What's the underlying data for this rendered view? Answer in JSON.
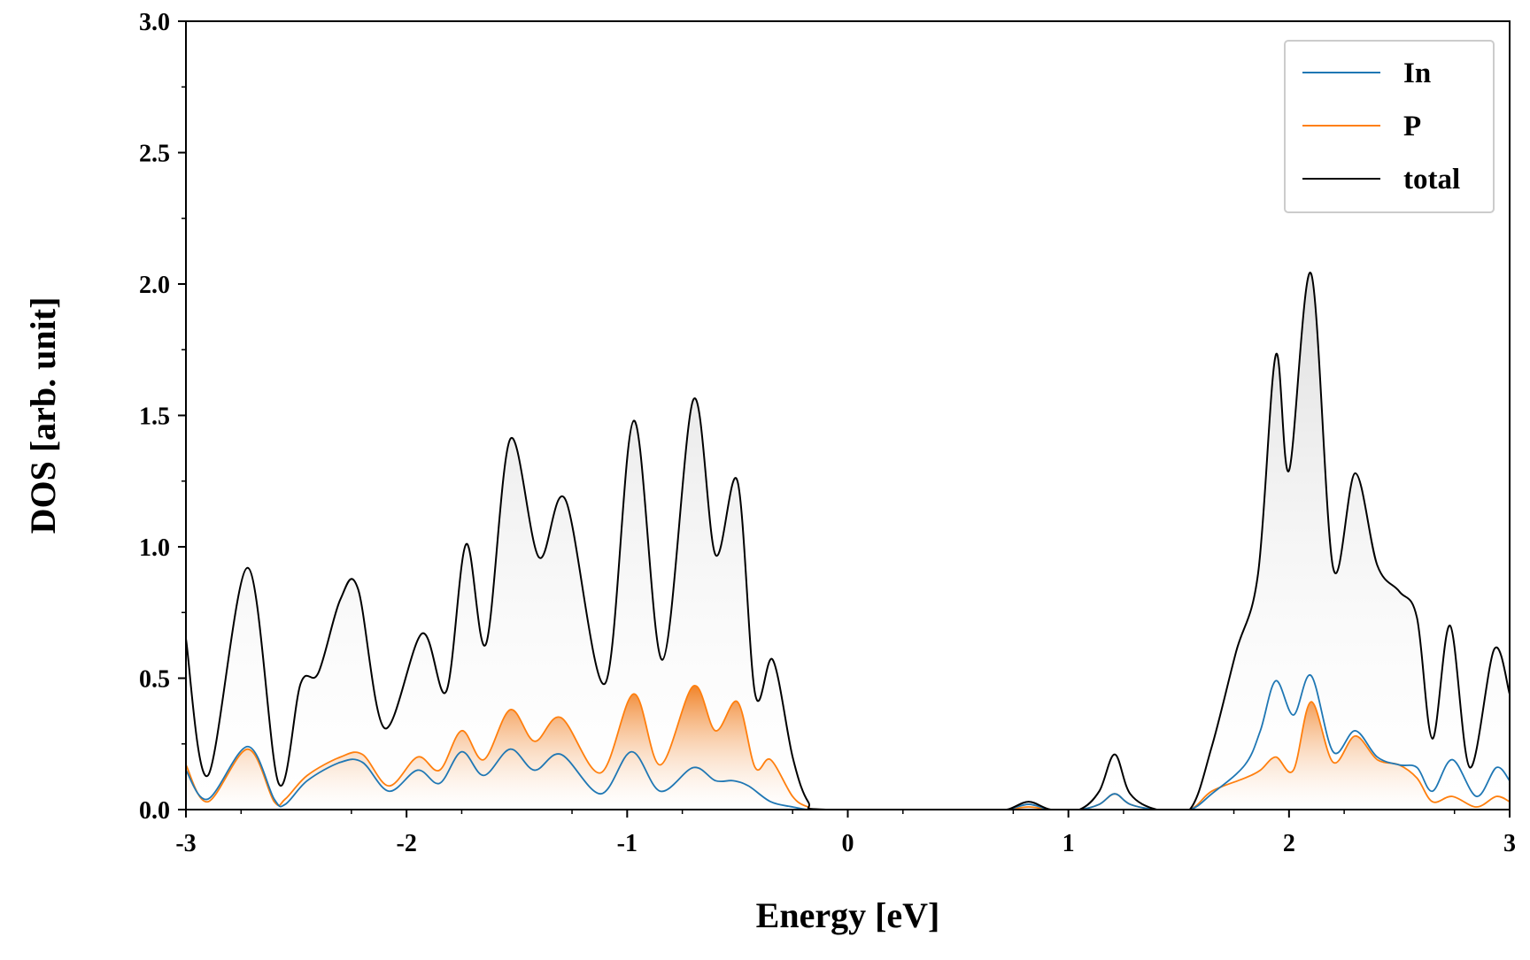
{
  "chart_data": {
    "type": "line",
    "title": "",
    "xlabel": "Energy [eV]",
    "ylabel": "DOS [arb. unit]",
    "xlim": [
      -3,
      3
    ],
    "ylim": [
      0,
      3.0
    ],
    "x_ticks": [
      -3,
      -2,
      -1,
      0,
      1,
      2,
      3
    ],
    "x_tick_labels": [
      "-3",
      "-2",
      "-1",
      "0",
      "1",
      "2",
      "3"
    ],
    "y_ticks": [
      0,
      0.5,
      1.0,
      1.5,
      2.0,
      2.5,
      3.0
    ],
    "y_tick_labels": [
      "0.0",
      "0.5",
      "1.0",
      "1.5",
      "2.0",
      "2.5",
      "3.0"
    ],
    "legend_position": "top-right",
    "grid": false,
    "series": [
      {
        "name": "In",
        "color": "#1f77b4",
        "x": [
          -3.0,
          -2.9,
          -2.72,
          -2.6,
          -2.55,
          -2.45,
          -2.3,
          -2.2,
          -2.08,
          -1.95,
          -1.85,
          -1.75,
          -1.65,
          -1.53,
          -1.42,
          -1.3,
          -1.12,
          -0.98,
          -0.85,
          -0.7,
          -0.6,
          -0.52,
          -0.45,
          -0.35,
          -0.25,
          -0.18,
          -0.1,
          0.6,
          0.72,
          0.82,
          0.92,
          1.05,
          1.14,
          1.21,
          1.28,
          1.4,
          1.55,
          1.65,
          1.8,
          1.87,
          1.94,
          2.02,
          2.1,
          2.2,
          2.3,
          2.4,
          2.5,
          2.58,
          2.65,
          2.74,
          2.85,
          2.94,
          3.0
        ],
        "values": [
          0.15,
          0.04,
          0.24,
          0.04,
          0.02,
          0.11,
          0.18,
          0.18,
          0.07,
          0.15,
          0.1,
          0.22,
          0.13,
          0.23,
          0.15,
          0.21,
          0.06,
          0.22,
          0.07,
          0.16,
          0.11,
          0.11,
          0.09,
          0.03,
          0.01,
          0.0,
          0.0,
          0.0,
          0.0,
          0.02,
          0.0,
          0.0,
          0.02,
          0.06,
          0.02,
          0.0,
          0.0,
          0.06,
          0.17,
          0.3,
          0.49,
          0.36,
          0.51,
          0.22,
          0.3,
          0.2,
          0.17,
          0.16,
          0.07,
          0.19,
          0.05,
          0.16,
          0.11
        ]
      },
      {
        "name": "P",
        "color": "#ff7f0e",
        "x": [
          -3.0,
          -2.9,
          -2.72,
          -2.6,
          -2.55,
          -2.45,
          -2.3,
          -2.2,
          -2.08,
          -1.95,
          -1.85,
          -1.75,
          -1.65,
          -1.53,
          -1.42,
          -1.3,
          -1.12,
          -0.97,
          -0.85,
          -0.7,
          -0.6,
          -0.5,
          -0.42,
          -0.35,
          -0.25,
          -0.18,
          -0.1,
          0.6,
          0.72,
          0.82,
          0.92,
          1.05,
          1.14,
          1.21,
          1.28,
          1.4,
          1.55,
          1.65,
          1.8,
          1.87,
          1.94,
          2.02,
          2.1,
          2.2,
          2.3,
          2.4,
          2.5,
          2.58,
          2.65,
          2.74,
          2.85,
          2.94,
          3.0
        ],
        "values": [
          0.17,
          0.03,
          0.23,
          0.03,
          0.04,
          0.13,
          0.2,
          0.21,
          0.09,
          0.2,
          0.15,
          0.3,
          0.19,
          0.38,
          0.26,
          0.35,
          0.14,
          0.44,
          0.17,
          0.47,
          0.3,
          0.41,
          0.16,
          0.19,
          0.05,
          0.01,
          0.0,
          0.0,
          0.0,
          0.01,
          0.0,
          0.0,
          0.02,
          0.06,
          0.02,
          0.0,
          0.0,
          0.07,
          0.12,
          0.15,
          0.2,
          0.15,
          0.41,
          0.18,
          0.28,
          0.19,
          0.17,
          0.12,
          0.03,
          0.05,
          0.01,
          0.05,
          0.03
        ]
      },
      {
        "name": "total",
        "color": "#000000",
        "x": [
          -3.0,
          -2.9,
          -2.72,
          -2.58,
          -2.48,
          -2.4,
          -2.3,
          -2.22,
          -2.1,
          -1.93,
          -1.82,
          -1.73,
          -1.64,
          -1.53,
          -1.4,
          -1.28,
          -1.1,
          -0.97,
          -0.84,
          -0.7,
          -0.6,
          -0.5,
          -0.42,
          -0.34,
          -0.25,
          -0.18,
          -0.1,
          0.6,
          0.72,
          0.82,
          0.92,
          1.05,
          1.14,
          1.21,
          1.28,
          1.4,
          1.55,
          1.65,
          1.76,
          1.86,
          1.94,
          2.0,
          2.1,
          2.2,
          2.3,
          2.4,
          2.5,
          2.58,
          2.65,
          2.73,
          2.82,
          2.93,
          3.0
        ],
        "values": [
          0.65,
          0.13,
          0.92,
          0.1,
          0.48,
          0.52,
          0.8,
          0.84,
          0.31,
          0.67,
          0.45,
          1.01,
          0.63,
          1.41,
          0.96,
          1.18,
          0.48,
          1.48,
          0.57,
          1.56,
          0.97,
          1.25,
          0.44,
          0.57,
          0.2,
          0.03,
          0.0,
          0.0,
          0.0,
          0.03,
          0.0,
          0.0,
          0.07,
          0.21,
          0.06,
          0.0,
          0.0,
          0.24,
          0.6,
          0.9,
          1.73,
          1.29,
          2.04,
          0.92,
          1.28,
          0.93,
          0.83,
          0.73,
          0.27,
          0.7,
          0.16,
          0.61,
          0.44
        ]
      }
    ]
  }
}
